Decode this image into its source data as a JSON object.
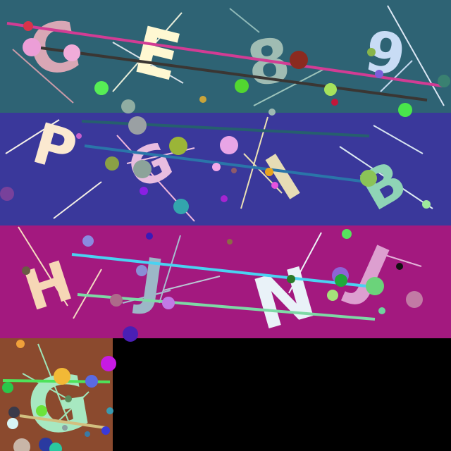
{
  "panels": [
    {
      "id": "panel-1",
      "background": "#2e6374",
      "letters": [
        {
          "char": "C",
          "color": "#d9a7b5"
        },
        {
          "char": "E",
          "color": "#fff8d2"
        },
        {
          "char": "8",
          "color": "#9fbcb3"
        },
        {
          "char": "9",
          "color": "#c8dcf5"
        }
      ]
    },
    {
      "id": "panel-2",
      "background": "#3a389b",
      "letters": [
        {
          "char": "P",
          "color": "#fbe9d0"
        },
        {
          "char": "G",
          "color": "#e8bde0"
        },
        {
          "char": "I",
          "color": "#e7dcb5"
        },
        {
          "char": "B",
          "color": "#8fd4b6"
        }
      ]
    },
    {
      "id": "panel-3",
      "background": "#a3197f",
      "letters": [
        {
          "char": "H",
          "color": "#f6d7b6"
        },
        {
          "char": "J",
          "color": "#9cb7c7"
        },
        {
          "char": "N",
          "color": "#e9f2f8"
        },
        {
          "char": "J",
          "color": "#dd9fd0"
        }
      ]
    },
    {
      "id": "panel-4",
      "background": "#8b4a2e",
      "letters": [
        {
          "char": "G",
          "color": "#a7e8c1"
        }
      ]
    }
  ]
}
